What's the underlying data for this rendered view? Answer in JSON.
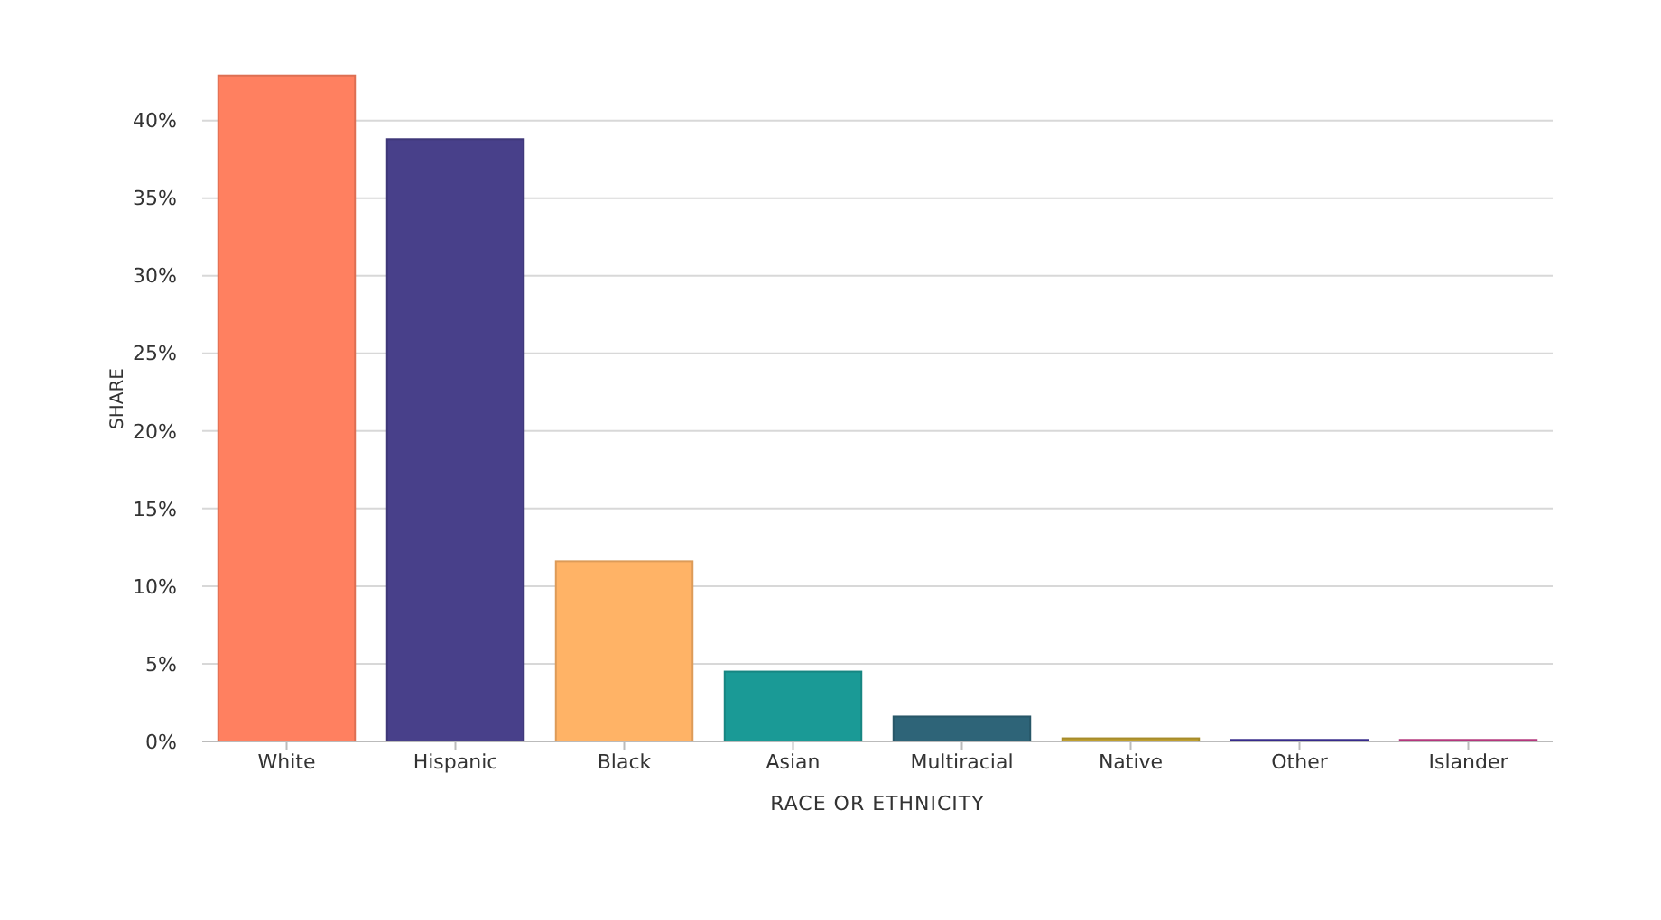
{
  "chart_data": {
    "type": "bar",
    "xlabel": "RACE OR ETHNICITY",
    "ylabel": "SHARE",
    "categories": [
      "White",
      "Hispanic",
      "Black",
      "Asian",
      "Multiracial",
      "Native",
      "Other",
      "Islander"
    ],
    "values": [
      42.9,
      38.8,
      11.6,
      4.5,
      1.6,
      0.2,
      0.1,
      0.1
    ],
    "colors": [
      "#ff8060",
      "#48408a",
      "#ffb366",
      "#1a9a96",
      "#2e6478",
      "#c0a030",
      "#4030a0",
      "#d04090"
    ],
    "ylim": [
      0,
      43
    ],
    "yticks": [
      {
        "value": 0,
        "label": "0%"
      },
      {
        "value": 5,
        "label": "5%"
      },
      {
        "value": 10,
        "label": "10%"
      },
      {
        "value": 15,
        "label": "15%"
      },
      {
        "value": 20,
        "label": "20%"
      },
      {
        "value": 25,
        "label": "25%"
      },
      {
        "value": 30,
        "label": "30%"
      },
      {
        "value": 35,
        "label": "35%"
      },
      {
        "value": 40,
        "label": "40%"
      }
    ],
    "grid": "y"
  }
}
